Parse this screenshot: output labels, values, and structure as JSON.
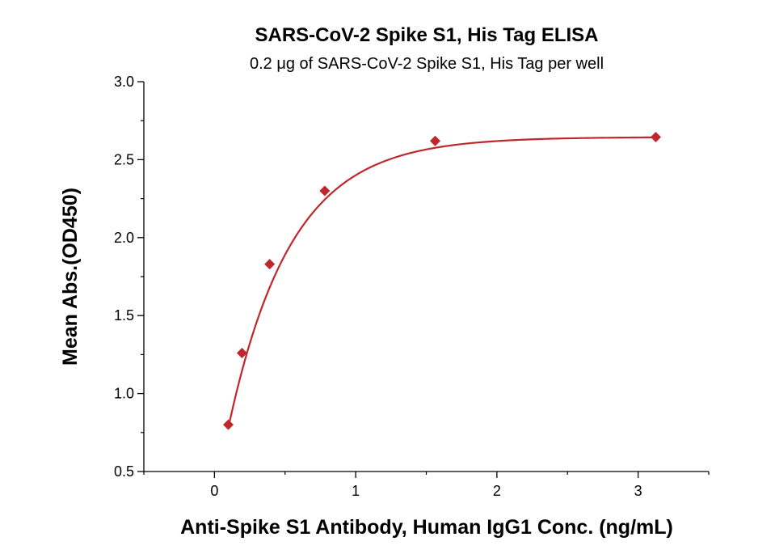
{
  "chart_data": {
    "type": "scatter",
    "title": "SARS-CoV-2 Spike S1, His Tag ELISA",
    "subtitle": "0.2 μg of SARS-CoV-2 Spike S1, His Tag per well",
    "xlabel": "Anti-Spike S1 Antibody, Human IgG1 Conc. (ng/mL)",
    "ylabel": "Mean Abs.(OD450)",
    "xlim": [
      -0.5,
      3.5
    ],
    "ylim": [
      0.5,
      3.0
    ],
    "x_ticks": [
      0,
      1,
      2,
      3
    ],
    "x_tick_labels": [
      "0",
      "1",
      "2",
      "3"
    ],
    "y_ticks": [
      0.5,
      1.0,
      1.5,
      2.0,
      2.5,
      3.0
    ],
    "y_tick_labels": [
      "0.5",
      "1.0",
      "1.5",
      "2.0",
      "2.5",
      "3.0"
    ],
    "grid": false,
    "marker": "diamond",
    "color": "#C0272D",
    "series": [
      {
        "x": [
          0.098,
          0.195,
          0.391,
          0.781,
          1.563,
          3.125
        ],
        "y": [
          0.8,
          1.26,
          1.83,
          2.3,
          2.62,
          2.645
        ],
        "fit_curve": true
      }
    ]
  }
}
